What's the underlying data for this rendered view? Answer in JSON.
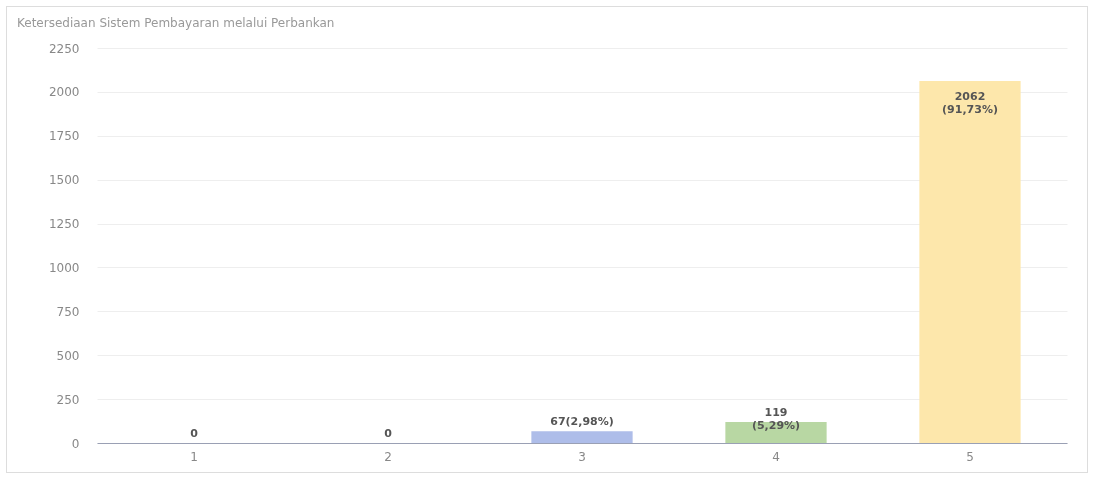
{
  "chart_data": {
    "type": "bar",
    "title": "Ketersediaan Sistem Pembayaran melalui Perbankan",
    "categories": [
      "1",
      "2",
      "3",
      "4",
      "5"
    ],
    "values": [
      0,
      0,
      67,
      119,
      2062
    ],
    "colors": [
      "#a9b8e8",
      "#a9b8e8",
      "#aebde9",
      "#b8d7a3",
      "#fde7ab"
    ],
    "value_labels": [
      "0",
      "0",
      "67(2,98%)",
      "119\n(5,29%)",
      "2062\n(91,73%)"
    ],
    "ylim": [
      0,
      2250
    ],
    "yticks": [
      0,
      250,
      500,
      750,
      1000,
      1250,
      1500,
      1750,
      2000,
      2250
    ],
    "grid": "y"
  }
}
